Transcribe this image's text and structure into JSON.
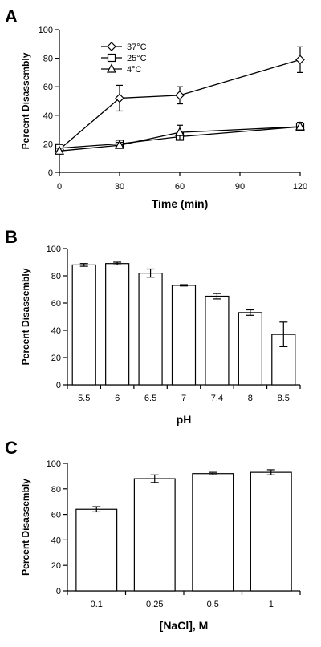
{
  "chart_data": [
    {
      "panel": "A",
      "type": "line",
      "xlabel": "Time (min)",
      "ylabel": "Percent Disassembly",
      "xlim": [
        0,
        120
      ],
      "ylim": [
        0,
        100
      ],
      "xticks": [
        0,
        30,
        60,
        90,
        120
      ],
      "yticks": [
        0,
        20,
        40,
        60,
        80,
        100
      ],
      "legend_position": "top-left",
      "series": [
        {
          "name": "37°C",
          "marker": "diamond",
          "x": [
            0,
            30,
            60,
            120
          ],
          "values": [
            16,
            52,
            54,
            79
          ],
          "errors": [
            2,
            9,
            6,
            9
          ]
        },
        {
          "name": "25°C",
          "marker": "square",
          "x": [
            0,
            30,
            60,
            120
          ],
          "values": [
            17,
            20,
            25,
            32
          ],
          "errors": [
            2,
            2,
            2,
            3
          ]
        },
        {
          "name": "4°C",
          "marker": "triangle",
          "x": [
            0,
            30,
            60,
            120
          ],
          "values": [
            15,
            19,
            28,
            32
          ],
          "errors": [
            2,
            2,
            5,
            3
          ]
        }
      ]
    },
    {
      "panel": "B",
      "type": "bar",
      "xlabel": "pH",
      "ylabel": "Percent Disassembly",
      "ylim": [
        0,
        100
      ],
      "yticks": [
        0,
        20,
        40,
        60,
        80,
        100
      ],
      "categories": [
        "5.5",
        "6",
        "6.5",
        "7",
        "7.4",
        "8",
        "8.5"
      ],
      "values": [
        88,
        89,
        82,
        73,
        65,
        53,
        37
      ],
      "errors": [
        1,
        1,
        3,
        0.5,
        2,
        2,
        9
      ]
    },
    {
      "panel": "C",
      "type": "bar",
      "xlabel": "[NaCl], M",
      "ylabel": "Percent Disassembly",
      "ylim": [
        0,
        100
      ],
      "yticks": [
        0,
        20,
        40,
        60,
        80,
        100
      ],
      "categories": [
        "0.1",
        "0.25",
        "0.5",
        "1"
      ],
      "values": [
        64,
        88,
        92,
        93
      ],
      "errors": [
        2,
        3,
        1,
        2
      ]
    }
  ]
}
